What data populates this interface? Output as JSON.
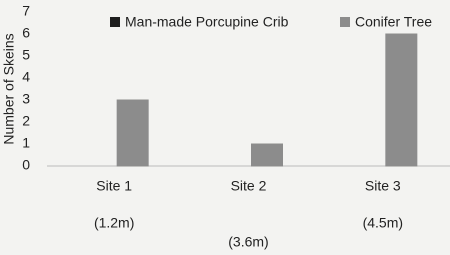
{
  "chart_data": {
    "type": "bar",
    "y_label": "Number of Skeins",
    "categories": [
      "Site 1",
      "Site 2",
      "Site 3"
    ],
    "series": [
      {
        "name": "Man-made Porcupine Crib",
        "color": "#1e1e1e",
        "values": [
          0,
          0,
          0
        ]
      },
      {
        "name": "Conifer Tree",
        "color": "#8c8c8c",
        "values": [
          3,
          1,
          6
        ]
      }
    ],
    "annotations": [
      "(1.2m)",
      "(3.6m)",
      "(4.5m)"
    ],
    "ylim": [
      0,
      7
    ],
    "yticks": [
      0,
      1,
      2,
      3,
      4,
      5,
      6,
      7
    ],
    "grid": false,
    "legend": "top"
  }
}
